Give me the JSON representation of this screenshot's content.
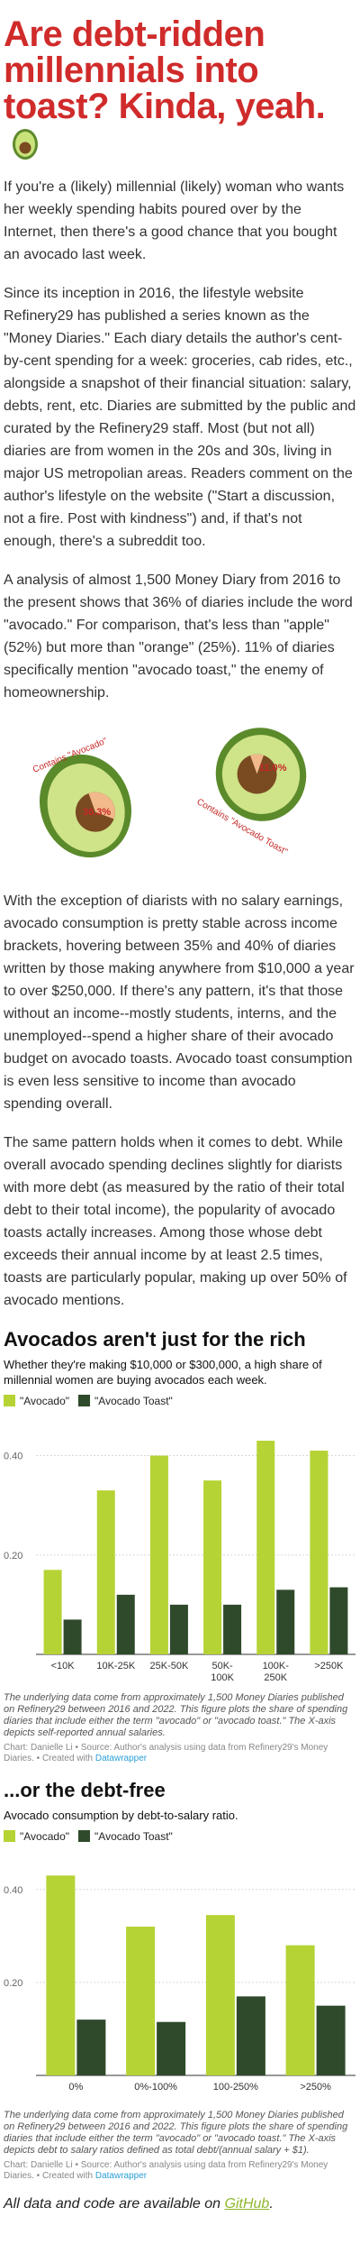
{
  "title": "Are debt-ridden millennials into toast? Kinda, yeah.",
  "paragraphs": [
    "If you're a (likely) millennial (likely) woman who wants her weekly spending habits poured over by the Internet, then there's a good chance that you bought an avocado last week.",
    "Since its inception in 2016, the lifestyle website Refinery29 has published a series known as the \"Money Diaries.\" Each diary details the author's cent-by-cent spending for a week: groceries, cab rides, etc., alongside a snapshot of their financial situation: salary, debts, rent, etc. Diaries are submitted by the public and curated by the Refinery29 staff. Most (but not all) diaries are from women in the 20s and 30s, living in major US metropolian areas. Readers comment on the author's lifestyle on the website (\"Start a discussion, not a fire. Post with kindness\") and, if that's not enough, there's a subreddit too.",
    "A analysis of almost 1,500 Money Diary from 2016 to the present shows that 36% of diaries include the word \"avocado.\" For comparison, that's less than \"apple\" (52%) but more than \"orange\" (25%). 11% of diaries specifically mention \"avocado toast,\" the enemy of homeownership.",
    "With the exception of diarists with no salary earnings, avocado consumption is pretty stable across income brackets, hovering between 35% and 40% of diaries written by those making anywhere from $10,000 a year to over $250,000. If there's any pattern, it's that those without an income--mostly students, interns, and the unemployed--spend a higher share of their avocado budget on avocado toasts. Avocado toast consumption is even less sensitive to income than avocado spending overall.",
    "The same pattern holds when it comes to debt. While overall avocado spending declines slightly for diarists with more debt (as measured by the ratio of their total debt to their total income), the popularity of avocado toasts actally increases. Among those whose debt exceeds their annual income by at least 2.5 times, toasts are particularly popular, making up over 50% of avocado mentions."
  ],
  "avocados": [
    {
      "label": "Contains \"Avocado\"",
      "pct_label": "36.3%",
      "value": 0.363
    },
    {
      "label": "Contains \"Avocado Toast\"",
      "pct_label": "11.0%",
      "value": 0.11
    }
  ],
  "colors": {
    "title_red": "#d02b2b",
    "avocado_series": "#b5d334",
    "toast_series": "#2f4a2a",
    "link_blue": "#2a9fd6",
    "github_green": "#8fb82e"
  },
  "charts": [
    {
      "heading": "Avocados aren't just for the rich",
      "subtitle": "Whether they're making $10,000 or $300,000, a high share of millennial women are buying avocados each week.",
      "note": "The underlying data come from approximately 1,500 Money Diaries published on Refinery29 between 2016 and 2022. This figure plots the share of spending diaries that include either the term \"avocado\" or \"avocado toast.\" The X-axis depicts self-reported annual salaries.",
      "credit_prefix": "Chart: Danielle Li • Source: Author's analysis using data from Refinery29's Money Diaries. • Created with ",
      "credit_link": "Datawrapper"
    },
    {
      "heading": "...or the debt-free",
      "subtitle": "Avocado consumption by debt-to-salary ratio.",
      "note": "The underlying data come from approximately 1,500 Money Diaries published on Refinery29 between 2016 and 2022. This figure plots the share of spending diaries that include either the term \"avocado\" or \"avocado toast.\" The X-axis depicts debt to salary ratios defined as total debt/(annual salary + $1).",
      "credit_prefix": "Chart: Danielle Li • Source: Author's analysis using data from Refinery29's Money Diaries. • Created with ",
      "credit_link": "Datawrapper"
    }
  ],
  "chart_data": [
    {
      "type": "bar",
      "categories": [
        "<10K",
        "10K-25K",
        "25K-50K",
        "50K-100K",
        "100K-250K",
        ">250K"
      ],
      "series": [
        {
          "name": "\"Avocado\"",
          "values": [
            0.17,
            0.33,
            0.4,
            0.35,
            0.43,
            0.41
          ]
        },
        {
          "name": "\"Avocado Toast\"",
          "values": [
            0.07,
            0.12,
            0.1,
            0.1,
            0.13,
            0.135
          ]
        }
      ],
      "yticks": [
        "0.40",
        "0.20"
      ],
      "ytick_values": [
        0.4,
        0.2
      ],
      "ylim": [
        0,
        0.45
      ],
      "grid": true,
      "legend": "top-left"
    },
    {
      "type": "bar",
      "categories": [
        "0%",
        "0%-100%",
        "100-250%",
        ">250%"
      ],
      "series": [
        {
          "name": "\"Avocado\"",
          "values": [
            0.43,
            0.32,
            0.345,
            0.28
          ]
        },
        {
          "name": "\"Avocado Toast\"",
          "values": [
            0.12,
            0.115,
            0.17,
            0.15
          ]
        }
      ],
      "yticks": [
        "0.40",
        "0.20"
      ],
      "ytick_values": [
        0.4,
        0.2
      ],
      "ylim": [
        0,
        0.45
      ],
      "grid": true,
      "legend": "top-left"
    }
  ],
  "footer": {
    "prefix": "All data and code are available on ",
    "link": "GitHub",
    "suffix": "."
  }
}
